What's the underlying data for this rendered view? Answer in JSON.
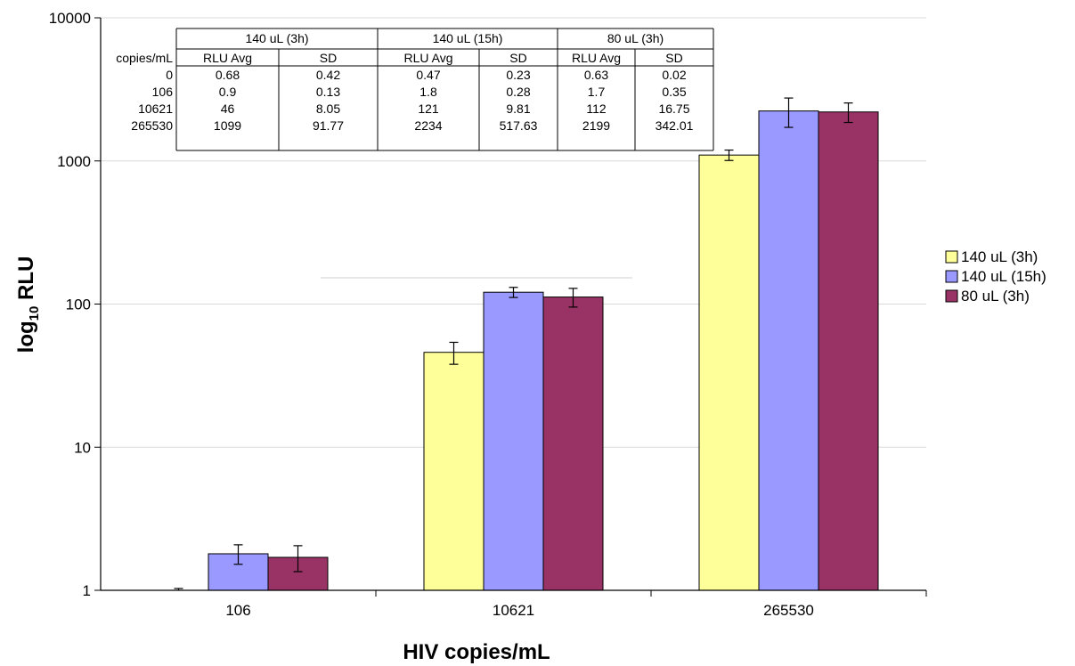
{
  "chart_data": {
    "type": "bar",
    "title": "",
    "xlabel": "HIV copies/mL",
    "ylabel_main": "log",
    "ylabel_sub": "10",
    "ylabel_rest": " RLU",
    "yscale": "log",
    "ylim": [
      1,
      10000
    ],
    "yticks": [
      "1",
      "10",
      "100",
      "1000",
      "10000"
    ],
    "categories": [
      "106",
      "10621",
      "265530"
    ],
    "legend_position": "right",
    "series": [
      {
        "name": "140 uL (3h)",
        "color": "#ffff99",
        "values": [
          0.9,
          46,
          1099
        ],
        "errors": [
          0.13,
          8.05,
          91.77
        ]
      },
      {
        "name": "140 uL (15h)",
        "color": "#9999ff",
        "values": [
          1.8,
          121,
          2234
        ],
        "errors": [
          0.28,
          9.81,
          517.63
        ]
      },
      {
        "name": "80 uL (3h)",
        "color": "#993366",
        "values": [
          1.7,
          112,
          2199
        ],
        "errors": [
          0.35,
          16.75,
          342.01
        ]
      }
    ],
    "table": {
      "row_header_label": "copies/mL",
      "groups": [
        "140 uL (3h)",
        "140 uL (15h)",
        "80 uL (3h)"
      ],
      "subheaders": [
        "RLU Avg",
        "SD",
        "RLU Avg",
        "SD",
        "RLU Avg",
        "SD"
      ],
      "rows": [
        {
          "label": "0",
          "cells": [
            "0.68",
            "0.42",
            "0.47",
            "0.23",
            "0.63",
            "0.02"
          ]
        },
        {
          "label": "106",
          "cells": [
            "0.9",
            "0.13",
            "1.8",
            "0.28",
            "1.7",
            "0.35"
          ]
        },
        {
          "label": "10621",
          "cells": [
            "46",
            "8.05",
            "121",
            "9.81",
            "112",
            "16.75"
          ]
        },
        {
          "label": "265530",
          "cells": [
            "1099",
            "91.77",
            "2234",
            "517.63",
            "2199",
            "342.01"
          ]
        }
      ]
    }
  }
}
